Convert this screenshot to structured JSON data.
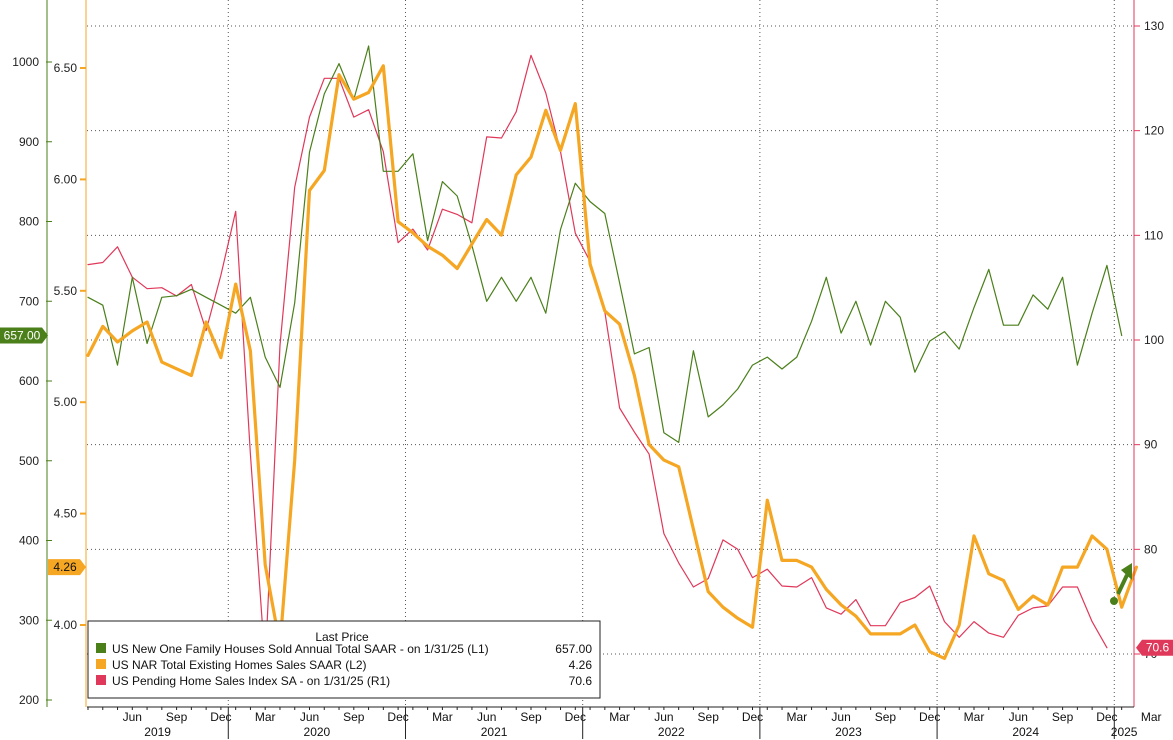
{
  "chart_data": {
    "type": "line",
    "legend": {
      "title": "Last Price",
      "placement": "bottom-left",
      "entries": [
        {
          "label": "US New One Family Houses Sold Annual Total SAAR -  on 1/31/25  (L1)",
          "value": "657.00",
          "color": "#4a7f1a"
        },
        {
          "label": "US NAR Total Existing Homes Sales SAAR  (L2)",
          "value": "4.26",
          "color": "#f5a623"
        },
        {
          "label": "US Pending Home Sales Index SA -  on 1/31/25  (R1)",
          "value": "70.6",
          "color": "#e0385a"
        }
      ]
    },
    "x": {
      "start": "2019-03",
      "end": "2025-03",
      "month_labels": [
        "Jun",
        "Sep",
        "Dec",
        "Mar",
        "Jun",
        "Sep",
        "Dec",
        "Mar",
        "Jun",
        "Sep",
        "Dec",
        "Mar",
        "Jun",
        "Sep",
        "Dec",
        "Mar",
        "Jun",
        "Sep",
        "Dec",
        "Mar",
        "Jun",
        "Sep",
        "Dec",
        "Mar"
      ],
      "year_labels": [
        "2019",
        "2020",
        "2021",
        "2022",
        "2023",
        "2024",
        "2025"
      ]
    },
    "axes": {
      "L1": {
        "range": [
          200,
          1050
        ],
        "ticks": [
          "200",
          "300",
          "400",
          "500",
          "600",
          "700",
          "800",
          "900",
          "1000"
        ],
        "color": "#4a7f1a"
      },
      "L2": {
        "range": [
          3.74,
          6.7
        ],
        "ticks": [
          "4.00",
          "4.50",
          "5.00",
          "5.50",
          "6.00",
          "6.50"
        ],
        "color": "#f5a623"
      },
      "R1": {
        "range": [
          66,
          131.5
        ],
        "ticks": [
          "70",
          "80",
          "90",
          "100",
          "110",
          "120",
          "130"
        ],
        "color": "#e0385a"
      }
    },
    "last_value_tags": {
      "L1": "657.00",
      "L2": "4.26",
      "R1": "70.6"
    },
    "grid": true,
    "series": [
      {
        "name": "US New One Family Houses Sold Annual Total SAAR",
        "axis": "L1",
        "color": "#4a7f1a",
        "values": [
          705,
          695,
          620,
          730,
          647,
          705,
          707,
          715,
          705,
          695,
          685,
          705,
          630,
          592,
          698,
          887,
          960,
          998,
          953,
          1020,
          863,
          863,
          885,
          776,
          850,
          832,
          770,
          700,
          730,
          700,
          730,
          685,
          790,
          848,
          825,
          810,
          723,
          634,
          642,
          535,
          523,
          638,
          555,
          570,
          590,
          620,
          630,
          615,
          630,
          675,
          730,
          660,
          700,
          645,
          700,
          680,
          611,
          650,
          662,
          640,
          692,
          740,
          670,
          670,
          708,
          690,
          730,
          620,
          685,
          745,
          657
        ]
      },
      {
        "name": "US NAR Total Existing Homes Sales SAAR",
        "axis": "L2",
        "color": "#f5a623",
        "values": [
          5.21,
          5.34,
          5.27,
          5.32,
          5.36,
          5.18,
          5.15,
          5.12,
          5.36,
          5.2,
          5.53,
          5.23,
          4.27,
          3.91,
          4.74,
          5.95,
          6.04,
          6.47,
          6.36,
          6.39,
          6.51,
          5.81,
          5.76,
          5.7,
          5.66,
          5.6,
          5.71,
          5.82,
          5.75,
          6.02,
          6.1,
          6.31,
          6.13,
          6.34,
          5.62,
          5.41,
          5.35,
          5.12,
          4.81,
          4.74,
          4.71,
          4.43,
          4.15,
          4.08,
          4.03,
          3.99,
          4.56,
          4.29,
          4.29,
          4.26,
          4.16,
          4.09,
          4.04,
          3.96,
          3.96,
          3.96,
          4.0,
          3.88,
          3.85,
          4.0,
          4.4,
          4.23,
          4.2,
          4.07,
          4.13,
          4.09,
          4.26,
          4.26,
          4.4,
          4.34,
          4.08,
          4.26
        ]
      },
      {
        "name": "US Pending Home Sales Index SA",
        "axis": "R1",
        "color": "#e0385a",
        "values": [
          107.2,
          107.4,
          108.9,
          106.0,
          104.9,
          105.0,
          104.2,
          105.3,
          100.9,
          106.2,
          112.3,
          89.1,
          69.0,
          99.5,
          114.6,
          121.3,
          125.0,
          125.0,
          121.3,
          122.0,
          118.0,
          109.3,
          110.6,
          108.6,
          112.5,
          112.0,
          111.2,
          119.4,
          119.3,
          121.8,
          127.2,
          123.6,
          118.0,
          110.2,
          107.5,
          102.7,
          93.5,
          91.2,
          89.1,
          81.5,
          78.7,
          76.4,
          77.2,
          80.9,
          80.0,
          77.3,
          78.1,
          76.5,
          76.4,
          77.3,
          74.4,
          73.8,
          75.2,
          72.7,
          72.7,
          74.9,
          75.4,
          76.5,
          73.1,
          71.6,
          73.1,
          72.0,
          71.6,
          73.7,
          74.4,
          74.6,
          76.4,
          76.4,
          73.1,
          70.6
        ]
      }
    ]
  }
}
